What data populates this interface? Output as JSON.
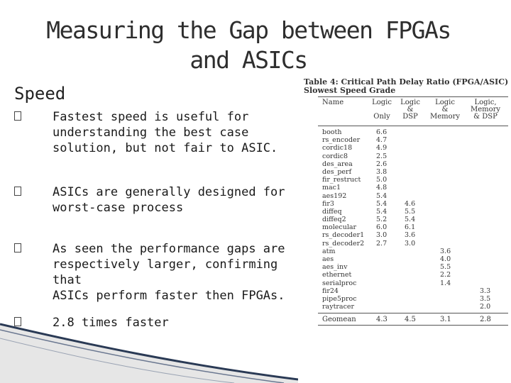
{
  "slide": {
    "title_line1": "Measuring the Gap between FPGAs",
    "title_line2": "and ASICs",
    "subheading": "Speed",
    "bullets": [
      "Fastest speed is useful for\nunderstanding the best case\nsolution, but not fair to ASIC.",
      "ASICs are generally designed for\nworst-case process",
      "As seen the performance gaps are\nrespectively larger, confirming that\nASICs perform faster then FPGAs.",
      "2.8 times faster"
    ]
  },
  "table": {
    "caption_line1": "Table 4: Critical Path Delay Ratio (FPGA/ASIC)",
    "caption_line2": "Slowest Speed Grade",
    "headers": [
      "Name",
      "Logic\n\nOnly",
      "Logic\n&\nDSP",
      "Logic\n&\nMemory",
      "Logic,\nMemory\n& DSP"
    ],
    "rows": [
      [
        "booth",
        "6.6",
        "",
        "",
        ""
      ],
      [
        "rs_encoder",
        "4.7",
        "",
        "",
        ""
      ],
      [
        "cordic18",
        "4.9",
        "",
        "",
        ""
      ],
      [
        "cordic8",
        "2.5",
        "",
        "",
        ""
      ],
      [
        "des_area",
        "2.6",
        "",
        "",
        ""
      ],
      [
        "des_perf",
        "3.8",
        "",
        "",
        ""
      ],
      [
        "fir_restruct",
        "5.0",
        "",
        "",
        ""
      ],
      [
        "mac1",
        "4.8",
        "",
        "",
        ""
      ],
      [
        "aes192",
        "5.4",
        "",
        "",
        ""
      ],
      [
        "fir3",
        "5.4",
        "4.6",
        "",
        ""
      ],
      [
        "diffeq",
        "5.4",
        "5.5",
        "",
        ""
      ],
      [
        "diffeq2",
        "5.2",
        "5.4",
        "",
        ""
      ],
      [
        "molecular",
        "6.0",
        "6.1",
        "",
        ""
      ],
      [
        "rs_decoder1",
        "3.0",
        "3.6",
        "",
        ""
      ],
      [
        "rs_decoder2",
        "2.7",
        "3.0",
        "",
        ""
      ],
      [
        "atm",
        "",
        "",
        "3.6",
        ""
      ],
      [
        "aes",
        "",
        "",
        "4.0",
        ""
      ],
      [
        "aes_inv",
        "",
        "",
        "5.5",
        ""
      ],
      [
        "ethernet",
        "",
        "",
        "2.2",
        ""
      ],
      [
        "serialproc",
        "",
        "",
        "1.4",
        ""
      ],
      [
        "fir24",
        "",
        "",
        "",
        "3.3"
      ],
      [
        "pipe5proc",
        "",
        "",
        "",
        "3.5"
      ],
      [
        "raytracer",
        "",
        "",
        "",
        "2.0"
      ]
    ],
    "geomean": [
      "Geomean",
      "4.3",
      "4.5",
      "3.1",
      "2.8"
    ]
  }
}
